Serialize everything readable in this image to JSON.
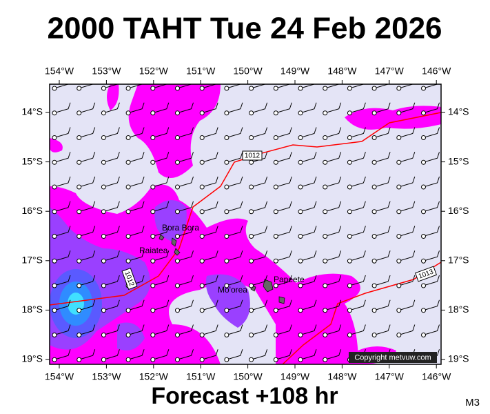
{
  "header": {
    "title": "2000 TAHT Tue 24 Feb 2026"
  },
  "footer": {
    "forecast": "Forecast +108 hr",
    "code": "M3"
  },
  "map": {
    "lon_labels": [
      "154°W",
      "153°W",
      "152°W",
      "151°W",
      "150°W",
      "149°W",
      "148°W",
      "147°W",
      "146°W"
    ],
    "lat_labels": [
      "14°S",
      "15°S",
      "16°S",
      "17°S",
      "18°S",
      "19°S"
    ],
    "places": [
      "Bora Bora",
      "Raiatea",
      "Mo'orea",
      "Papeete"
    ],
    "isobar_labels": [
      "1012",
      "1012",
      "1013"
    ],
    "copyright": "Copyright metvuw.com"
  }
}
